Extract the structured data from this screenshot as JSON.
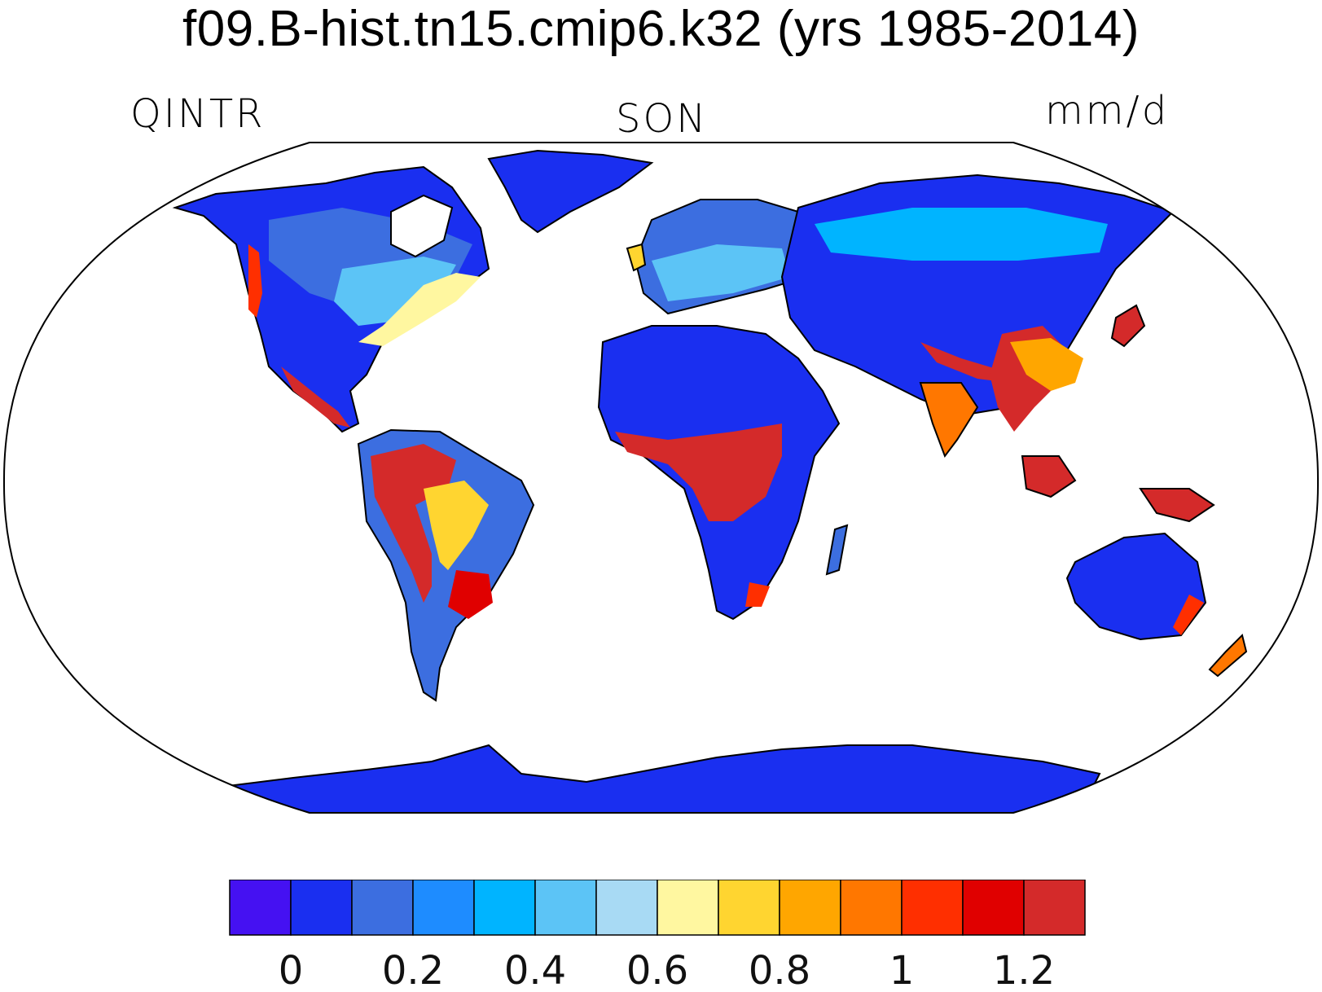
{
  "header": {
    "title": "f09.B-hist.tn15.cmip6.k32 (yrs 1985-2014)",
    "variable": "QINTR",
    "season": "SON",
    "units": "mm/d"
  },
  "colorbar": {
    "tick_labels": [
      "0",
      "0.2",
      "0.4",
      "0.6",
      "0.8",
      "1",
      "1.2"
    ],
    "colors": [
      "#4511f2",
      "#1a2ff0",
      "#3c6ee0",
      "#1e8cff",
      "#00b4ff",
      "#5cc4f6",
      "#a8daf4",
      "#fff7a0",
      "#ffd530",
      "#ffa600",
      "#ff7700",
      "#ff2f00",
      "#e00000",
      "#d42a2a"
    ],
    "bin_edges": [
      null,
      0,
      0.1,
      0.2,
      0.3,
      0.4,
      0.5,
      0.6,
      0.7,
      0.8,
      0.9,
      1.0,
      1.1,
      1.2,
      null
    ]
  },
  "map": {
    "projection": "Robinson",
    "land_default_color": "#1a2ff0",
    "ocean_color": "#ffffff"
  }
}
